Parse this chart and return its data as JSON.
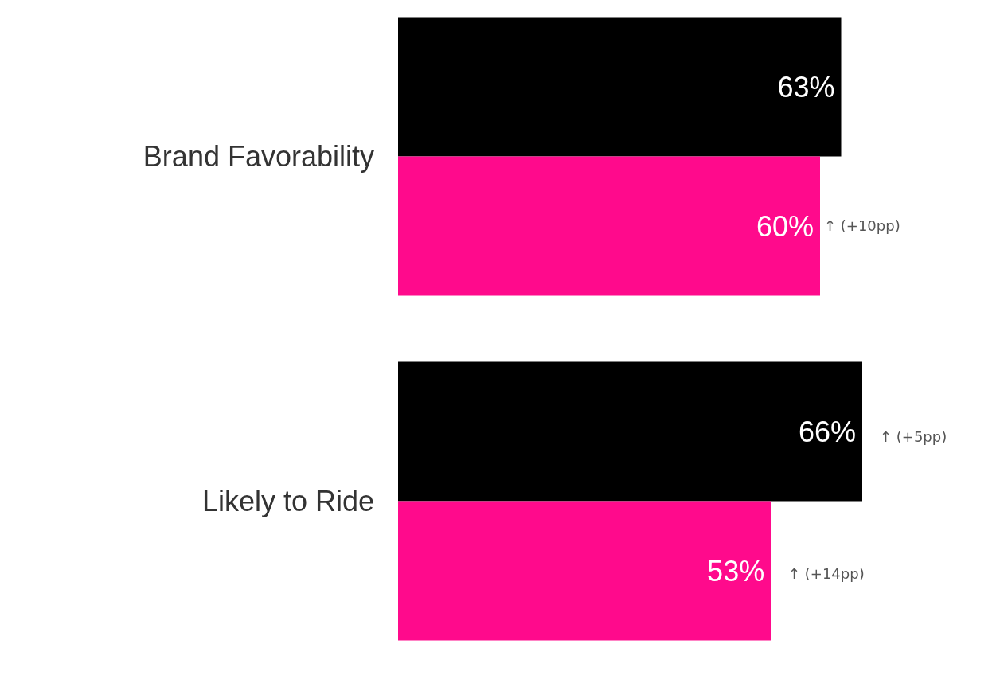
{
  "chart_data": {
    "type": "bar",
    "orientation": "horizontal",
    "categories": [
      "Brand Favorability",
      "Likely to Ride"
    ],
    "series": [
      {
        "color": "#000000",
        "values": [
          63,
          66
        ],
        "value_labels": [
          "63%",
          "66%"
        ]
      },
      {
        "color": "#ff0a8c",
        "values": [
          60,
          53
        ],
        "value_labels": [
          "60%",
          "53%"
        ]
      }
    ],
    "annotations": [
      "↑ (+10pp)",
      "↑ (+5pp)",
      "↑ (+14pp)"
    ]
  }
}
